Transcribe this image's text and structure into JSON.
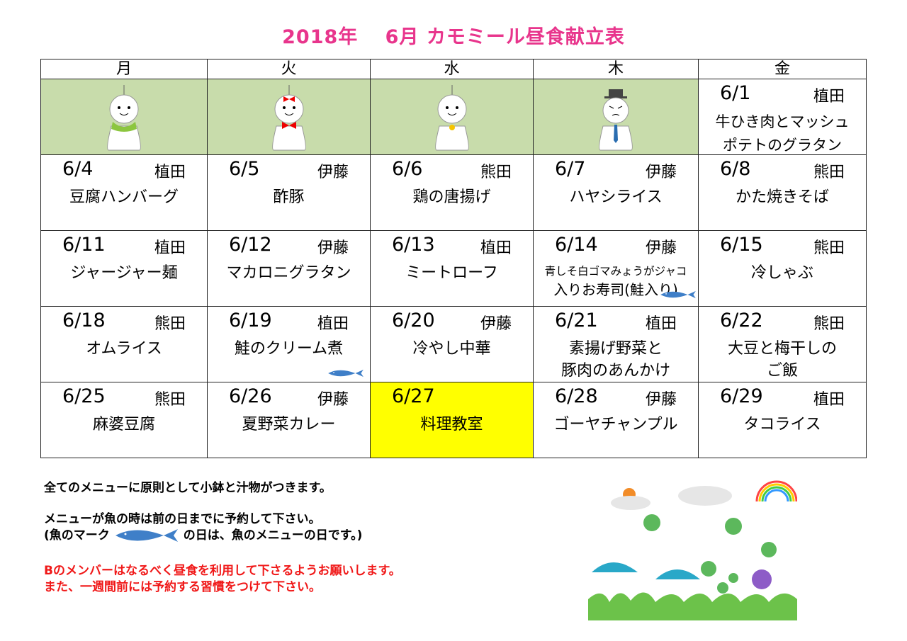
{
  "title": "2018年　 6月  カモミール昼食献立表",
  "weekdays": [
    "月",
    "火",
    "水",
    "木",
    "金"
  ],
  "week0": {
    "fri": {
      "date": "6/1",
      "name": "植田",
      "dish1": "牛ひき肉とマッシュ",
      "dish2": "ポテトのグラタン"
    }
  },
  "weeks": [
    [
      {
        "date": "6/4",
        "name": "植田",
        "dish": "豆腐ハンバーグ"
      },
      {
        "date": "6/5",
        "name": "伊藤",
        "dish": "酢豚"
      },
      {
        "date": "6/6",
        "name": "熊田",
        "dish": "鶏の唐揚げ"
      },
      {
        "date": "6/7",
        "name": "伊藤",
        "dish": "ハヤシライス"
      },
      {
        "date": "6/8",
        "name": "熊田",
        "dish": "かた焼きそば"
      }
    ],
    [
      {
        "date": "6/11",
        "name": "植田",
        "dish": "ジャージャー麺"
      },
      {
        "date": "6/12",
        "name": "伊藤",
        "dish": "マカロニグラタン"
      },
      {
        "date": "6/13",
        "name": "植田",
        "dish": "ミートローフ"
      },
      {
        "date": "6/14",
        "name": "伊藤",
        "dish": "青しそ白ゴマみょうがジャコ",
        "dish2": "入りお寿司(鮭入り)",
        "fish": true
      },
      {
        "date": "6/15",
        "name": "熊田",
        "dish": "冷しゃぶ"
      }
    ],
    [
      {
        "date": "6/18",
        "name": "熊田",
        "dish": "オムライス"
      },
      {
        "date": "6/19",
        "name": "植田",
        "dish": "鮭のクリーム煮",
        "fish": true
      },
      {
        "date": "6/20",
        "name": "伊藤",
        "dish": "冷やし中華"
      },
      {
        "date": "6/21",
        "name": "植田",
        "dish": "素揚げ野菜と",
        "dish2": "豚肉のあんかけ"
      },
      {
        "date": "6/22",
        "name": "熊田",
        "dish": "大豆と梅干しの",
        "dish2": "ご飯"
      }
    ],
    [
      {
        "date": "6/25",
        "name": "熊田",
        "dish": "麻婆豆腐"
      },
      {
        "date": "6/26",
        "name": "伊藤",
        "dish": "夏野菜カレー"
      },
      {
        "date": "6/27",
        "name": "",
        "dish": "料理教室",
        "highlight": true
      },
      {
        "date": "6/28",
        "name": "伊藤",
        "dish": "ゴーヤチャンプル"
      },
      {
        "date": "6/29",
        "name": "植田",
        "dish": "タコライス"
      }
    ]
  ],
  "notes": {
    "line1": "全てのメニューに原則として小鉢と汁物がつきます。",
    "line2": "メニューが魚の時は前の日までに予約して下さい。",
    "line3a": "(魚のマーク",
    "line3b": "の日は、魚のメニューの日です。)",
    "red1": "Bのメンバーはなるべく昼食を利用して下さるようお願いします。",
    "red2": "また、一週間前には予約する習慣をつけて下さい。"
  },
  "colors": {
    "title": "#e8358c",
    "holiday_cell": "#c8dcab",
    "highlight": "#ffff00",
    "fish": "#3f7fc8",
    "red_note": "#f01818"
  }
}
